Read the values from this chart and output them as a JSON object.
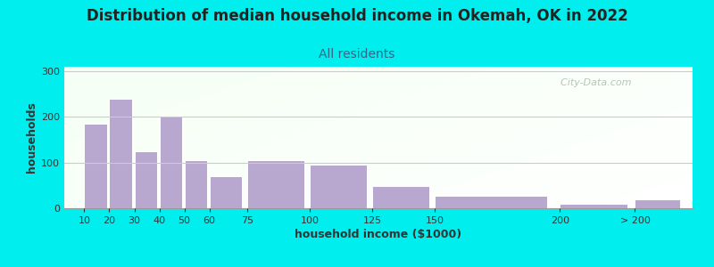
{
  "title": "Distribution of median household income in Okemah, OK in 2022",
  "subtitle": "All residents",
  "xlabel": "household income ($1000)",
  "ylabel": "households",
  "background_outer": "#00EEEE",
  "bar_color": "#B8A8D0",
  "bar_edge_color": "#FFFFFF",
  "grid_color": "#CCCCCC",
  "categories": [
    "10",
    "20",
    "30",
    "40",
    "50",
    "60",
    "75",
    "100",
    "125",
    "150",
    "200",
    "> 200"
  ],
  "values": [
    185,
    240,
    125,
    200,
    105,
    70,
    105,
    95,
    48,
    27,
    10,
    20
  ],
  "x_positions": [
    10,
    20,
    30,
    40,
    50,
    60,
    75,
    100,
    125,
    150,
    200,
    230
  ],
  "bar_widths": [
    9,
    9,
    9,
    9,
    9,
    13,
    23,
    23,
    23,
    45,
    27,
    18
  ],
  "ylim": [
    0,
    310
  ],
  "yticks": [
    0,
    100,
    200,
    300
  ],
  "title_fontsize": 12,
  "subtitle_fontsize": 10,
  "axis_label_fontsize": 9,
  "tick_fontsize": 8,
  "title_color": "#222222",
  "subtitle_color": "#336688",
  "xlabel_color": "#333333",
  "ylabel_color": "#333333",
  "watermark": "  City-Data.com",
  "watermark_color": "#AABBAA"
}
